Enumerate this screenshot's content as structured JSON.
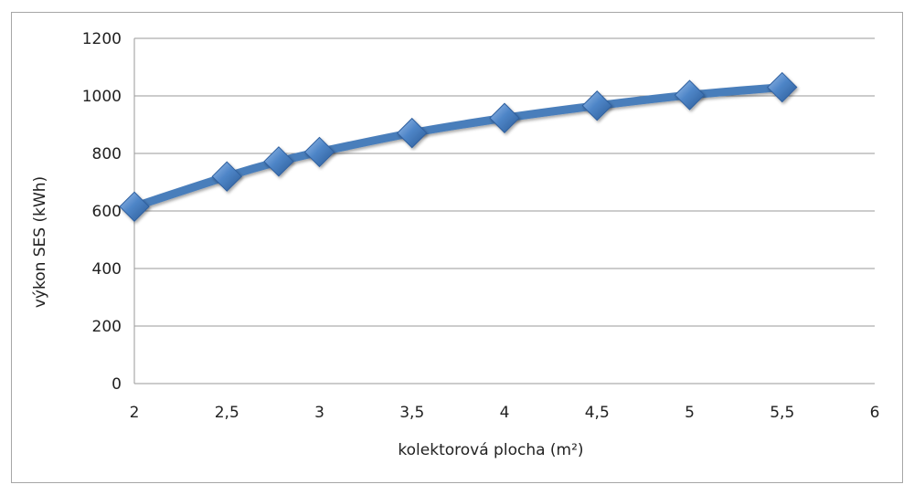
{
  "chart_data": {
    "type": "line",
    "title": "",
    "xlabel": "kolektorová plocha (m²)",
    "ylabel": "výkon SES (kWh)",
    "xlim": [
      2,
      6
    ],
    "ylim": [
      0,
      1200
    ],
    "x_ticks": [
      2,
      2.5,
      3,
      3.5,
      4,
      4.5,
      5,
      5.5,
      6
    ],
    "x_tick_labels": [
      "2",
      "2,5",
      "3",
      "3,5",
      "4",
      "4,5",
      "5",
      "5,5",
      "6"
    ],
    "y_ticks": [
      0,
      200,
      400,
      600,
      800,
      1000,
      1200
    ],
    "y_tick_labels": [
      "0",
      "200",
      "400",
      "600",
      "800",
      "1000",
      "1200"
    ],
    "grid": "horizontal",
    "legend": "none",
    "series": [
      {
        "x": [
          2,
          2.5,
          2.78,
          3,
          3.5,
          4,
          4.5,
          5,
          5.5
        ],
        "y": [
          615,
          720,
          772,
          805,
          871,
          923,
          966,
          1003,
          1030
        ],
        "color": "#4a7ebb",
        "marker": "diamond",
        "smooth": true
      }
    ]
  }
}
